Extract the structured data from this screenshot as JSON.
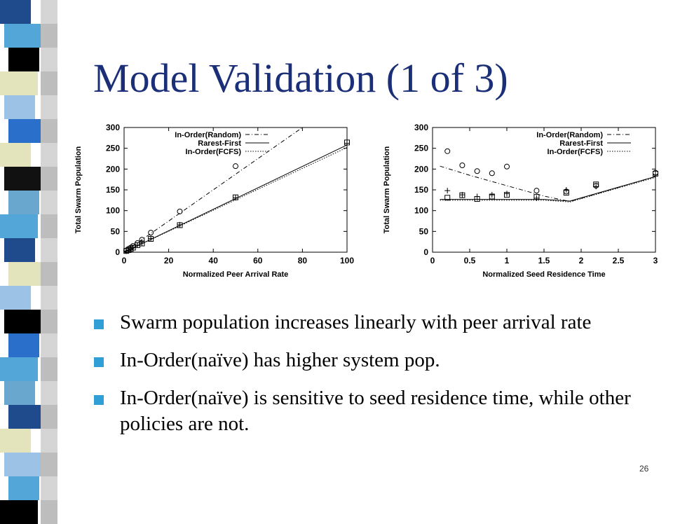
{
  "slide": {
    "title": "Model Validation (1 of 3)",
    "page_number": "26",
    "accent_bullet_color": "#2f9fd6",
    "title_color": "#1a2f78",
    "stripe_colors": [
      "#1f4a8c",
      "#53a7d8",
      "#000000",
      "#e3e4bc",
      "#9cc3e6",
      "#2a6fc9",
      "#111111",
      "#6aa7cf"
    ]
  },
  "bullets": [
    "Swarm population increases linearly with peer arrival rate",
    "In-Order(naïve) has higher system pop.",
    "In-Order(naïve) is sensitive to seed residence time, while other policies are not."
  ],
  "chart_data": [
    {
      "type": "scatter",
      "xlabel": "Normalized Peer Arrival Rate",
      "ylabel": "Total Swarm Population",
      "xlim": [
        0,
        100
      ],
      "ylim": [
        0,
        300
      ],
      "xticks": [
        0,
        20,
        40,
        60,
        80,
        100
      ],
      "yticks": [
        0,
        50,
        100,
        150,
        200,
        250,
        300
      ],
      "legend_position": "top-left",
      "legend": [
        "In-Order(Random)",
        "Rarest-First",
        "In-Order(FCFS)"
      ],
      "series": [
        {
          "name": "In-Order(Random)",
          "line": "dash-dot",
          "marker": "circle",
          "line_x": [
            0,
            80
          ],
          "line_y": [
            0,
            300
          ],
          "x": [
            1,
            2,
            3,
            4,
            6,
            8,
            12,
            25,
            50
          ],
          "y": [
            4,
            8,
            11,
            15,
            22,
            30,
            47,
            98,
            207
          ]
        },
        {
          "name": "Rarest-First",
          "line": "solid",
          "marker": "square",
          "line_x": [
            0,
            100
          ],
          "line_y": [
            0,
            258
          ],
          "x": [
            1,
            2,
            3,
            4,
            6,
            8,
            12,
            25,
            50,
            100
          ],
          "y": [
            3,
            5,
            8,
            11,
            17,
            21,
            32,
            65,
            132,
            264
          ]
        },
        {
          "name": "In-Order(FCFS)",
          "line": "dotted",
          "marker": "plus",
          "line_x": [
            0,
            100
          ],
          "line_y": [
            0,
            252
          ],
          "x": [
            1,
            2,
            3,
            4,
            6,
            8,
            12,
            25,
            50,
            100
          ],
          "y": [
            3,
            5,
            8,
            11,
            17,
            22,
            33,
            66,
            131,
            262
          ]
        }
      ]
    },
    {
      "type": "scatter",
      "xlabel": "Normalized Seed Residence Time",
      "ylabel": "Total Swarm Population",
      "xlim": [
        0,
        3
      ],
      "ylim": [
        0,
        300
      ],
      "xticks": [
        0,
        0.5,
        1,
        1.5,
        2,
        2.5,
        3
      ],
      "xtick_labels": [
        "0",
        "0.5",
        "1",
        "1.5",
        "2",
        "2.5",
        "3"
      ],
      "yticks": [
        0,
        50,
        100,
        150,
        200,
        250,
        300
      ],
      "legend_position": "top-right",
      "legend": [
        "In-Order(Random)",
        "Rarest-First",
        "In-Order(FCFS)"
      ],
      "series": [
        {
          "name": "In-Order(Random)",
          "line": "dash-dot",
          "marker": "circle",
          "line_x": [
            0.1,
            0.5,
            1.0,
            1.5,
            1.85,
            3.0
          ],
          "line_y": [
            207,
            185,
            160,
            135,
            122,
            182
          ],
          "x": [
            0.2,
            0.4,
            0.6,
            0.8,
            1.0,
            1.4,
            1.8,
            2.2,
            3.0
          ],
          "y": [
            243,
            209,
            195,
            190,
            206,
            148,
            146,
            160,
            191
          ]
        },
        {
          "name": "Rarest-First",
          "line": "solid",
          "marker": "square",
          "line_x": [
            0.1,
            1.5,
            1.85,
            3.0
          ],
          "line_y": [
            127,
            127,
            123,
            182
          ],
          "x": [
            0.2,
            0.4,
            0.6,
            0.8,
            1.0,
            1.4,
            1.8,
            2.2,
            3.0
          ],
          "y": [
            131,
            137,
            128,
            134,
            138,
            133,
            143,
            163,
            189
          ]
        },
        {
          "name": "In-Order(FCFS)",
          "line": "dotted",
          "marker": "plus",
          "line_x": [
            0.1,
            1.5,
            1.85,
            3.0
          ],
          "line_y": [
            125,
            125,
            121,
            180
          ],
          "x": [
            0.2,
            0.4,
            0.6,
            0.8,
            1.0,
            1.4,
            1.8,
            2.2,
            3.0
          ],
          "y": [
            148,
            138,
            134,
            138,
            141,
            130,
            150,
            158,
            186
          ]
        }
      ]
    }
  ]
}
